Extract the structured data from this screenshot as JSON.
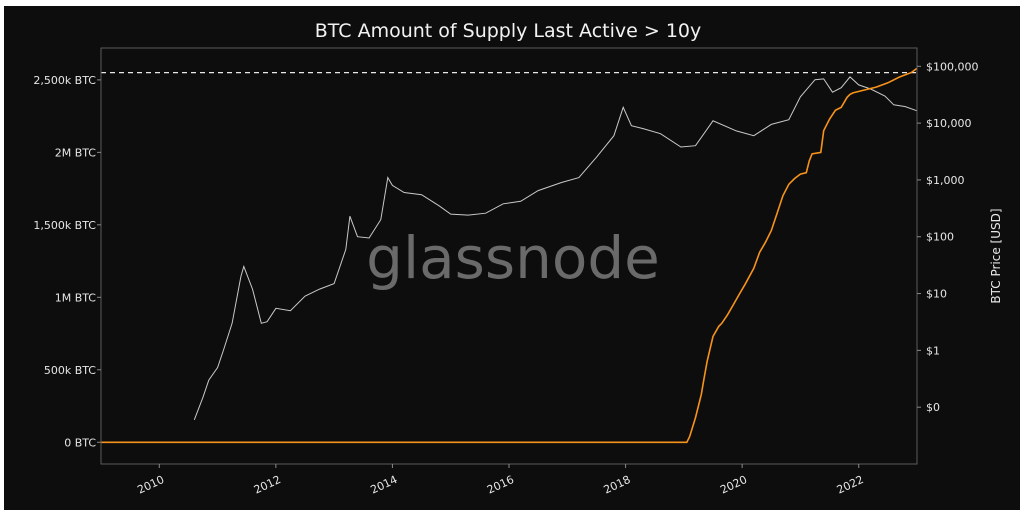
{
  "chart_data": {
    "type": "line",
    "title": "BTC Amount of Supply Last Active > 10y",
    "watermark": "glassnode",
    "ylabel_right": "BTC Price [USD]",
    "x_ticks": [
      "2010",
      "2012",
      "2014",
      "2016",
      "2018",
      "2020",
      "2022"
    ],
    "x_range": [
      2009.0,
      2023.0
    ],
    "y_left_ticks": [
      {
        "value": 0,
        "label": "0 BTC"
      },
      {
        "value": 500000,
        "label": "500k BTC"
      },
      {
        "value": 1000000,
        "label": "1M BTC"
      },
      {
        "value": 1500000,
        "label": "1,500k BTC"
      },
      {
        "value": 2000000,
        "label": "2M BTC"
      },
      {
        "value": 2500000,
        "label": "2,500k BTC"
      }
    ],
    "y_left_range": [
      -150000,
      2720000
    ],
    "y_right_ticks": [
      {
        "value": 0.1,
        "label": "$0"
      },
      {
        "value": 1,
        "label": "$1"
      },
      {
        "value": 10,
        "label": "$10"
      },
      {
        "value": 100,
        "label": "$100"
      },
      {
        "value": 1000,
        "label": "$1,000"
      },
      {
        "value": 10000,
        "label": "$10,000"
      },
      {
        "value": 100000,
        "label": "$100,000"
      }
    ],
    "y_right_scale": "log",
    "y_right_range": [
      0.01,
      210000
    ],
    "reference_line": {
      "value": 2550000,
      "style": "dashed",
      "color": "#e8e8e8"
    },
    "grid": false,
    "colors": {
      "supply": "#f7931a",
      "price": "#c9c9c9",
      "background": "#0d0d0d",
      "axis": "#5a5a5a",
      "text": "#e6e6e6",
      "watermark": "#6a6a6a"
    },
    "series": [
      {
        "key": "supply",
        "axis": "left",
        "x": [
          2009.0,
          2019.05,
          2019.1,
          2019.2,
          2019.3,
          2019.35,
          2019.4,
          2019.5,
          2019.6,
          2019.65,
          2019.75,
          2019.85,
          2019.95,
          2020.05,
          2020.2,
          2020.3,
          2020.4,
          2020.5,
          2020.6,
          2020.7,
          2020.8,
          2020.9,
          2021.0,
          2021.1,
          2021.15,
          2021.2,
          2021.35,
          2021.4,
          2021.5,
          2021.6,
          2021.7,
          2021.8,
          2021.85,
          2021.9,
          2022.1,
          2022.3,
          2022.5,
          2022.7,
          2022.9,
          2023.0
        ],
        "y": [
          0,
          0,
          40000,
          170000,
          330000,
          450000,
          560000,
          730000,
          800000,
          820000,
          880000,
          950000,
          1020000,
          1090000,
          1200000,
          1310000,
          1380000,
          1460000,
          1580000,
          1700000,
          1780000,
          1820000,
          1850000,
          1860000,
          1940000,
          1990000,
          2000000,
          2150000,
          2230000,
          2290000,
          2310000,
          2380000,
          2400000,
          2410000,
          2430000,
          2450000,
          2480000,
          2520000,
          2550000,
          2580000
        ]
      },
      {
        "key": "price",
        "axis": "right",
        "x": [
          2010.6,
          2010.75,
          2010.85,
          2011.0,
          2011.1,
          2011.25,
          2011.4,
          2011.45,
          2011.6,
          2011.75,
          2011.85,
          2012.0,
          2012.25,
          2012.5,
          2012.75,
          2013.0,
          2013.2,
          2013.27,
          2013.4,
          2013.6,
          2013.8,
          2013.92,
          2014.0,
          2014.2,
          2014.5,
          2014.8,
          2015.0,
          2015.3,
          2015.6,
          2015.9,
          2016.2,
          2016.5,
          2016.9,
          2017.2,
          2017.5,
          2017.8,
          2017.96,
          2018.1,
          2018.3,
          2018.6,
          2018.95,
          2019.2,
          2019.5,
          2019.9,
          2020.2,
          2020.5,
          2020.8,
          2021.0,
          2021.25,
          2021.4,
          2021.55,
          2021.7,
          2021.85,
          2022.0,
          2022.2,
          2022.45,
          2022.6,
          2022.8,
          2023.0
        ],
        "y": [
          0.06,
          0.15,
          0.3,
          0.5,
          1.0,
          3.0,
          20.0,
          30.0,
          12.0,
          3.0,
          3.2,
          5.5,
          5.0,
          9.0,
          12.0,
          15.0,
          60.0,
          230.0,
          100.0,
          95.0,
          200.0,
          1100.0,
          800.0,
          600.0,
          550.0,
          350.0,
          250.0,
          240.0,
          260.0,
          380.0,
          420.0,
          650.0,
          900.0,
          1100.0,
          2500.0,
          6000.0,
          19000.0,
          9000.0,
          8000.0,
          6500.0,
          3800.0,
          4000.0,
          11000.0,
          7300.0,
          6000.0,
          9500.0,
          11500.0,
          29000.0,
          58000.0,
          60000.0,
          35000.0,
          42000.0,
          65000.0,
          47000.0,
          40000.0,
          30000.0,
          21000.0,
          19500.0,
          16500.0
        ]
      }
    ]
  }
}
